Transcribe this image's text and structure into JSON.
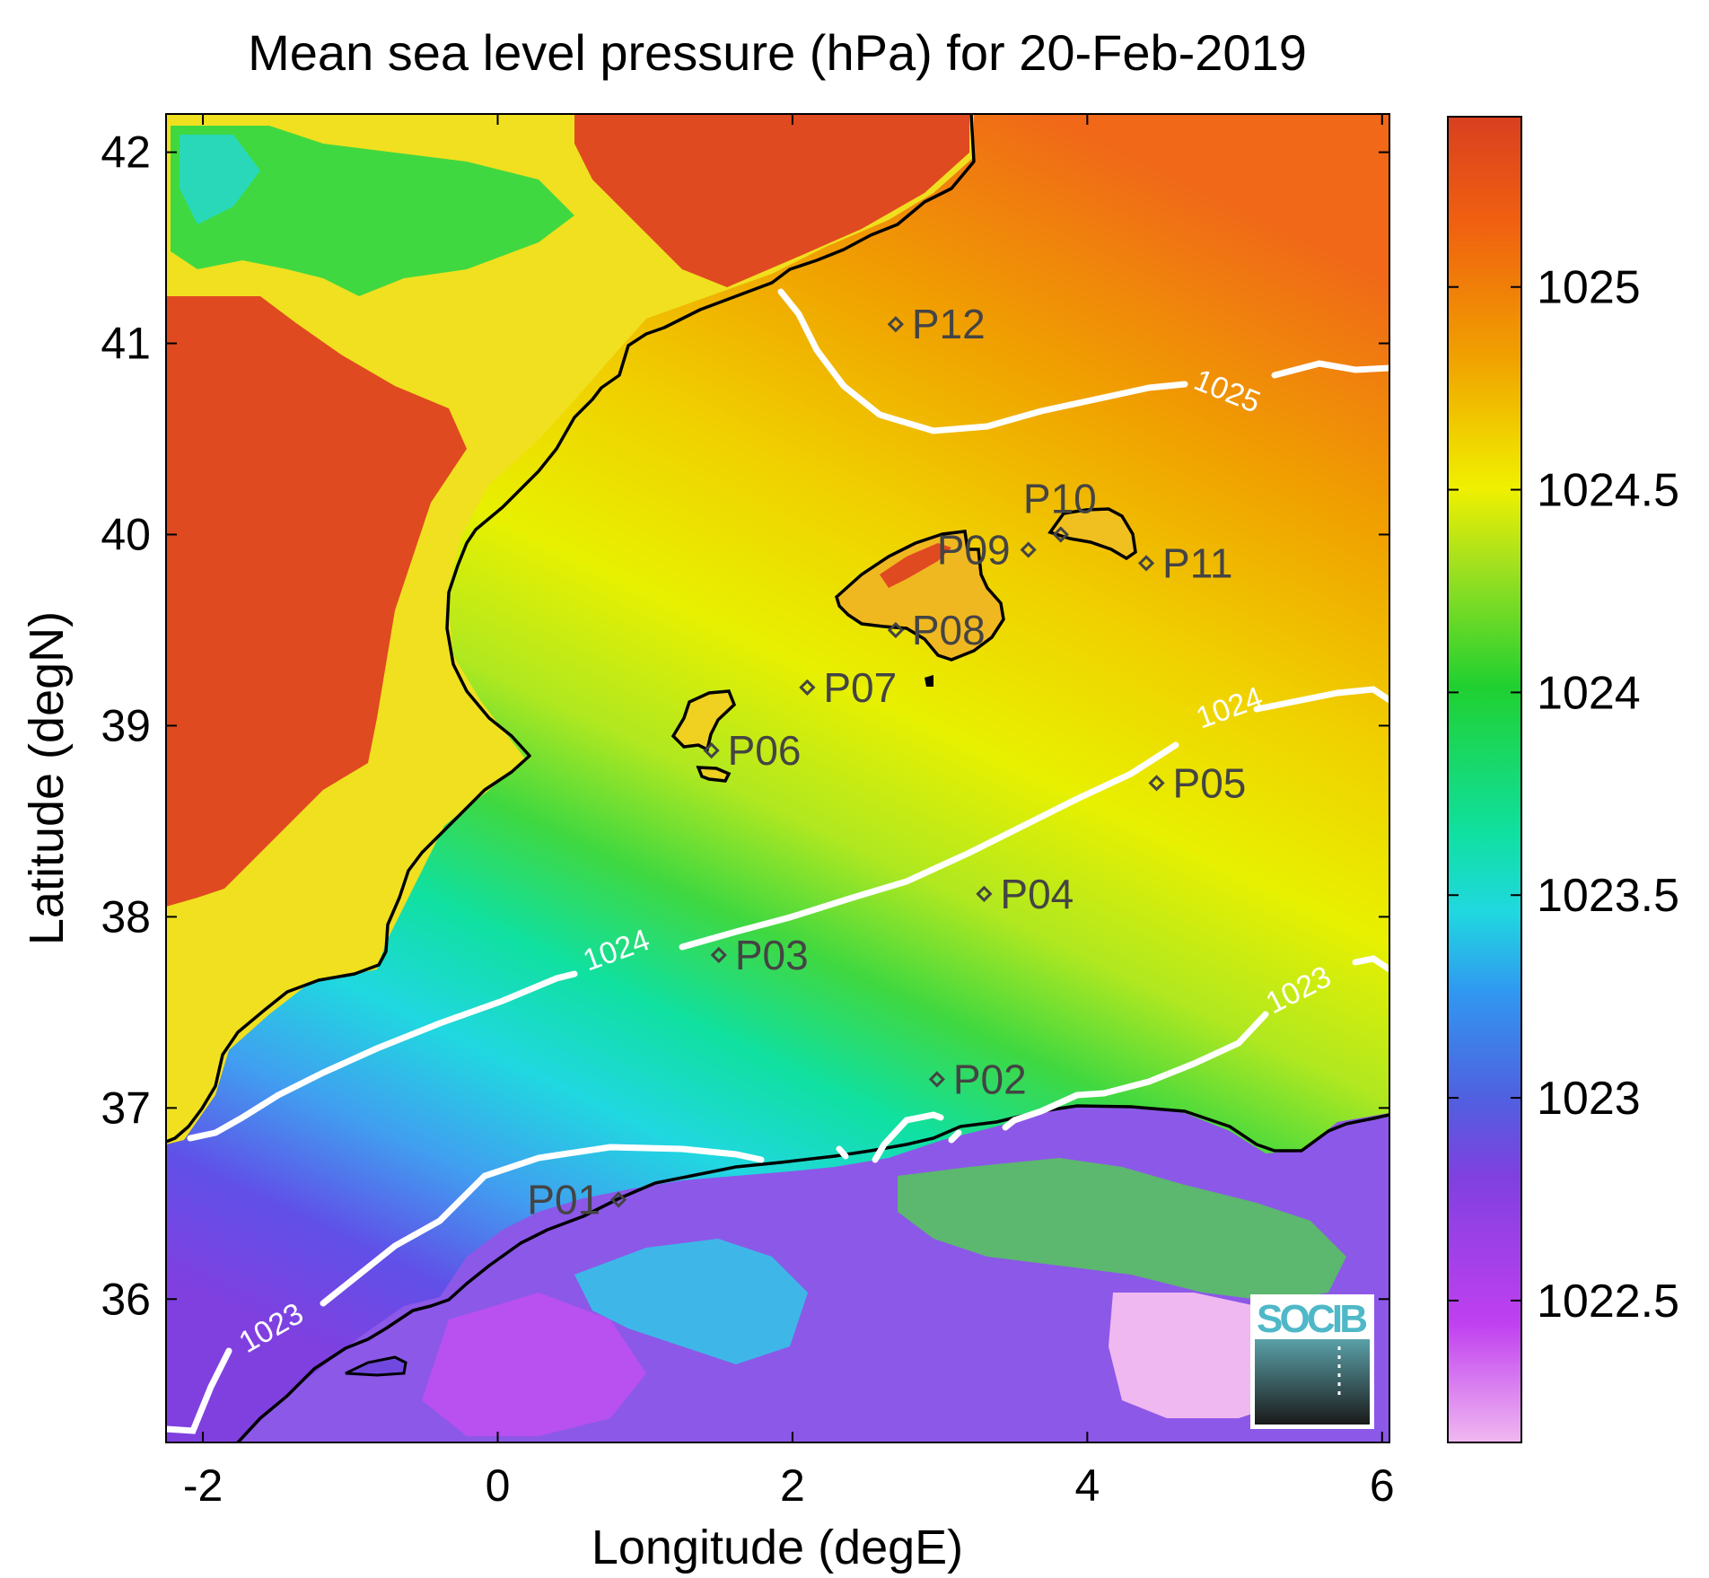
{
  "title": "Mean sea level pressure (hPa) for 20-Feb-2019",
  "x_axis": {
    "label": "Longitude (degE)",
    "ticks": [
      -2,
      0,
      2,
      4,
      6
    ],
    "range": [
      -2.25,
      6.05
    ]
  },
  "y_axis": {
    "label": "Latitude (degN)",
    "ticks": [
      36,
      37,
      38,
      39,
      40,
      41,
      42
    ],
    "range": [
      35.25,
      42.2
    ]
  },
  "colorbar": {
    "ticks": [
      "1025",
      "1024.5",
      "1024",
      "1023.5",
      "1023",
      "1022.5"
    ],
    "tick_values": [
      1025,
      1024.5,
      1024,
      1023.5,
      1023,
      1022.5
    ],
    "range": [
      1022.15,
      1025.42
    ],
    "colors": [
      "#f0b8f0",
      "#c040f0",
      "#7048e0",
      "#3098f0",
      "#20e0e0",
      "#20d040",
      "#a0e020",
      "#f0f000",
      "#f0b000",
      "#f06010",
      "#d84020"
    ]
  },
  "stations": [
    {
      "name": "P01",
      "lon": 0.82,
      "lat": 36.52
    },
    {
      "name": "P02",
      "lon": 2.98,
      "lat": 37.15
    },
    {
      "name": "P03",
      "lon": 1.5,
      "lat": 37.8
    },
    {
      "name": "P04",
      "lon": 3.3,
      "lat": 38.12
    },
    {
      "name": "P05",
      "lon": 4.47,
      "lat": 38.7
    },
    {
      "name": "P06",
      "lon": 1.45,
      "lat": 38.87
    },
    {
      "name": "P07",
      "lon": 2.1,
      "lat": 39.2
    },
    {
      "name": "P08",
      "lon": 2.7,
      "lat": 39.5
    },
    {
      "name": "P09",
      "lon": 3.6,
      "lat": 39.92
    },
    {
      "name": "P10",
      "lon": 3.82,
      "lat": 40.0
    },
    {
      "name": "P11",
      "lon": 4.4,
      "lat": 39.85
    },
    {
      "name": "P12",
      "lon": 2.7,
      "lat": 41.1
    }
  ],
  "contour_labels": [
    "1025",
    "1024",
    "1024",
    "1023",
    "1023"
  ],
  "logo": {
    "text": "SOCIB"
  },
  "chart_data": {
    "type": "heatmap",
    "variable": "Mean sea level pressure",
    "units": "hPa",
    "date": "20-Feb-2019",
    "contour_levels": [
      1023,
      1024,
      1025
    ]
  }
}
